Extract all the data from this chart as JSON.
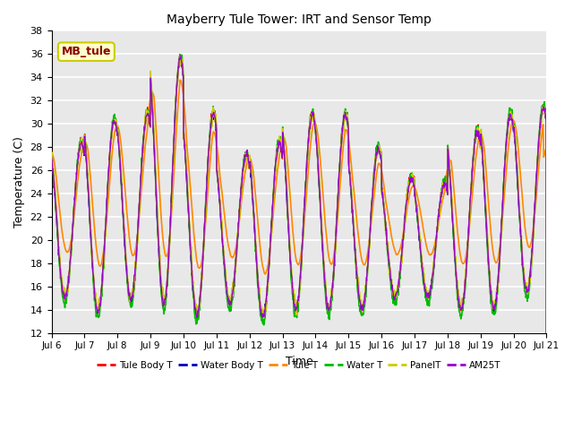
{
  "title": "Mayberry Tule Tower: IRT and Sensor Temp",
  "xlabel": "Time",
  "ylabel": "Temperature (C)",
  "ylim": [
    12,
    38
  ],
  "annotation": "MB_tule",
  "annotation_color": "#8B0000",
  "annotation_bg": "#FFFFCC",
  "annotation_border": "#CCCC00",
  "background_color": "#E8E8E8",
  "grid_color": "#FFFFFF",
  "series": [
    {
      "label": "Tule Body T",
      "color": "#FF0000",
      "lw": 1.0
    },
    {
      "label": "Water Body T",
      "color": "#0000BB",
      "lw": 1.0
    },
    {
      "label": "Tule T",
      "color": "#FF8800",
      "lw": 1.2
    },
    {
      "label": "Water T",
      "color": "#00BB00",
      "lw": 1.2
    },
    {
      "label": "PanelT",
      "color": "#CCCC00",
      "lw": 1.2
    },
    {
      "label": "AM25T",
      "color": "#9900CC",
      "lw": 1.0
    }
  ],
  "x_tick_labels": [
    "Jul 6",
    "Jul 7",
    "Jul 8",
    "Jul 9",
    "Jul 10",
    "Jul 11",
    "Jul 12",
    "Jul 13",
    "Jul 14",
    "Jul 15",
    "Jul 16",
    "Jul 17",
    "Jul 18",
    "Jul 19",
    "Jul 20",
    "Jul 21"
  ],
  "x_tick_positions": [
    0,
    1,
    2,
    3,
    4,
    5,
    6,
    7,
    8,
    9,
    10,
    11,
    12,
    13,
    14,
    15
  ],
  "day_peaks": [
    28.5,
    30.5,
    31.0,
    35.8,
    31.0,
    27.5,
    28.5,
    31.0,
    31.0,
    28.0,
    25.5,
    25.0,
    29.5,
    31.0,
    31.5
  ],
  "day_troughs": [
    15.0,
    13.8,
    14.8,
    14.5,
    13.5,
    14.5,
    13.3,
    14.0,
    14.0,
    14.0,
    15.0,
    15.0,
    14.0,
    14.0,
    15.5
  ]
}
